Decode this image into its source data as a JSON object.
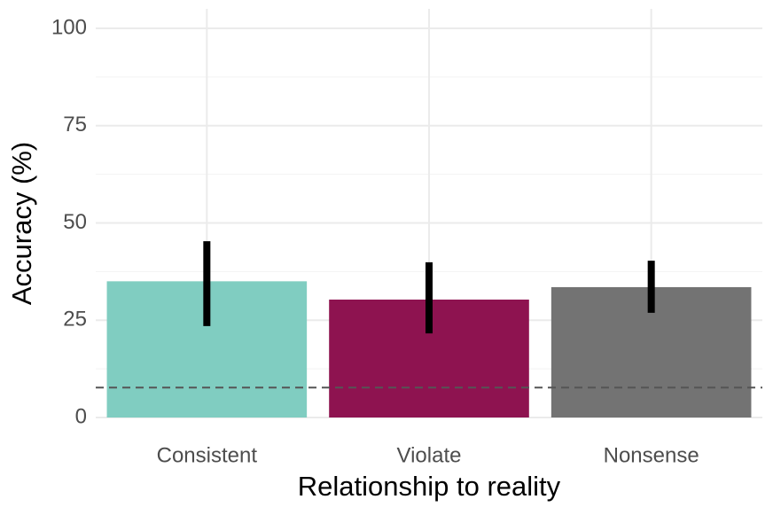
{
  "chart_data": {
    "type": "bar",
    "x_label": "Relationship to reality",
    "y_label": "Accuracy (%)",
    "categories": [
      "Consistent",
      "Violate",
      "Nonsense"
    ],
    "values": [
      35,
      30.3,
      33.5
    ],
    "error_low": [
      23.5,
      21.6,
      26.9
    ],
    "error_high": [
      45.3,
      39.9,
      40.3
    ],
    "colors": [
      "#80cdc1",
      "#8e1350",
      "#737373"
    ],
    "error_color": "#000000",
    "ylim": [
      0,
      100
    ],
    "yticks": [
      0,
      25,
      50,
      75,
      100
    ],
    "y_minor_ticks": [
      12.5,
      37.5,
      62.5,
      87.5
    ],
    "reference_line": 7.7,
    "grid": true
  }
}
